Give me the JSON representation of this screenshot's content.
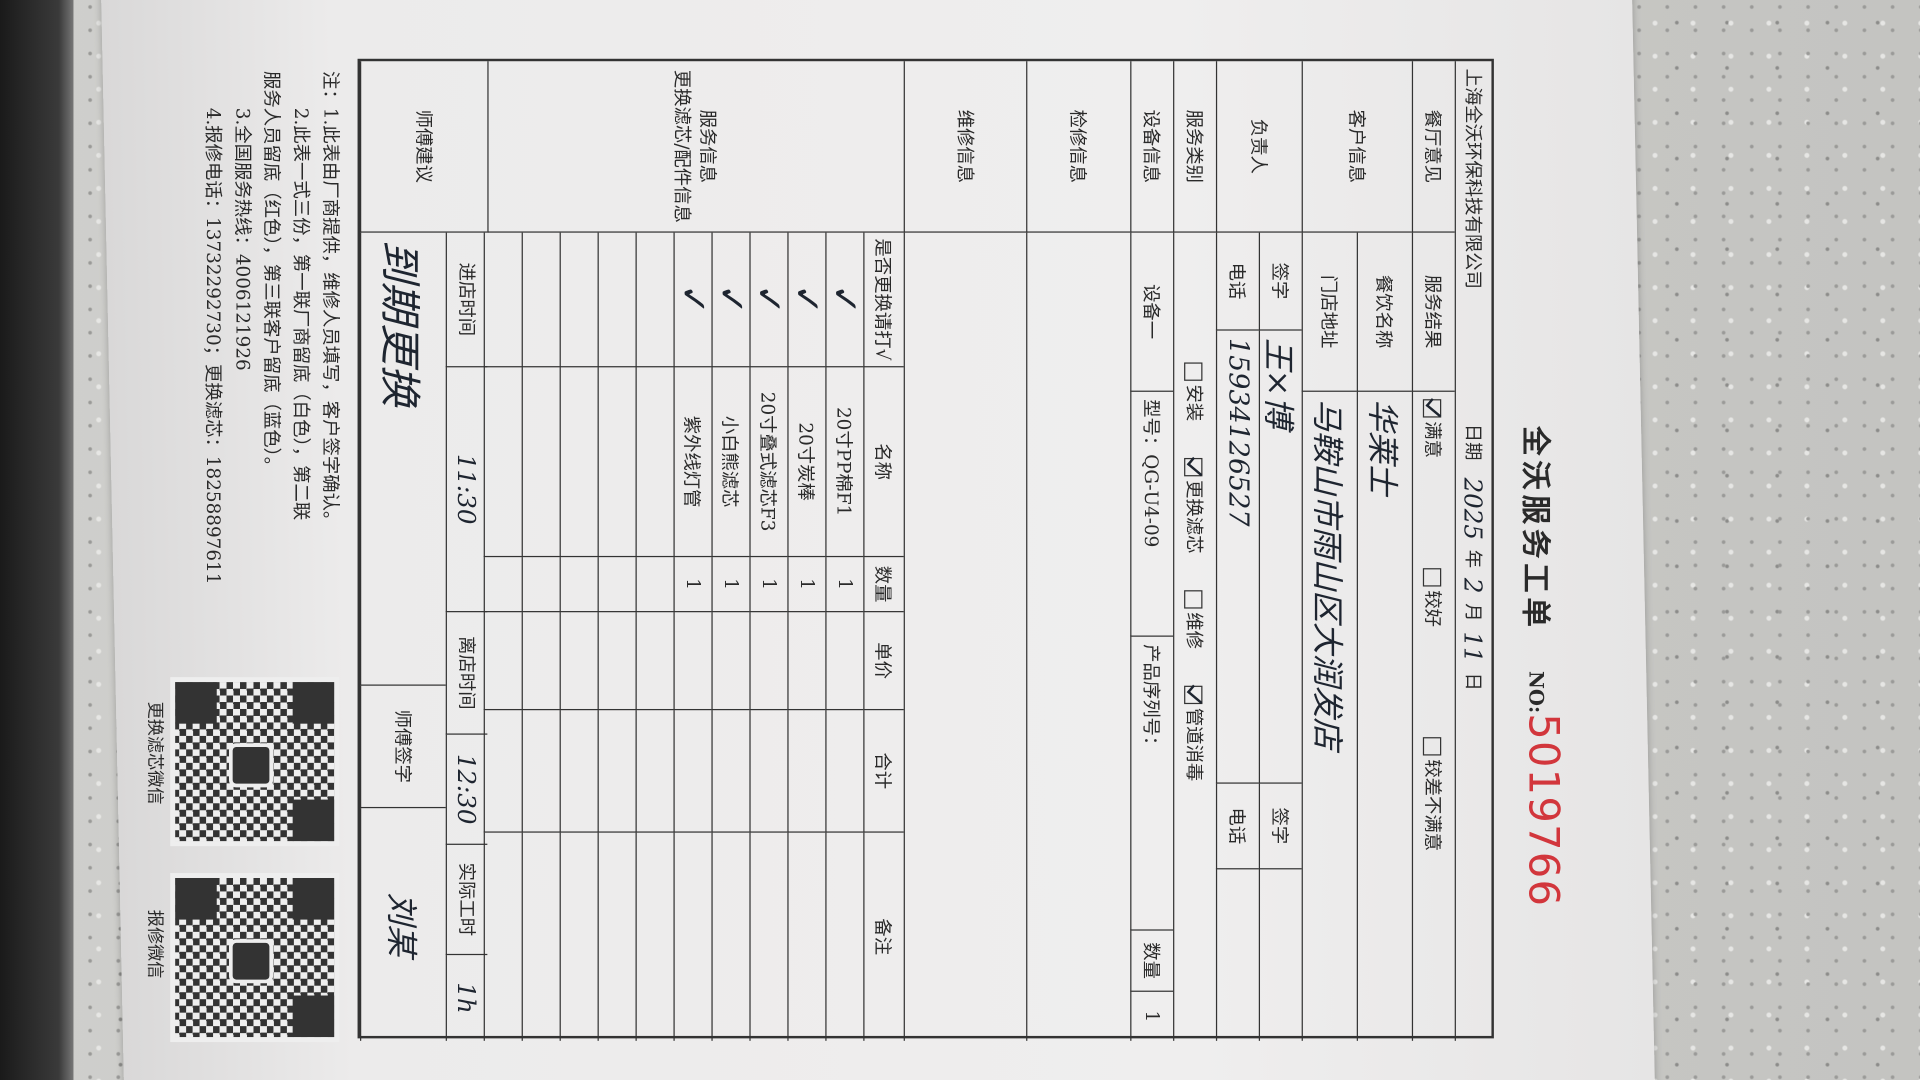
{
  "header": {
    "title": "全沃服务工单",
    "no_label": "NO:",
    "no_value": "5019766",
    "company": "上海全沃环保科技有限公司",
    "date_label": "日期",
    "date_year": "2025",
    "date_year_unit": "年",
    "date_month": "2",
    "date_month_unit": "月",
    "date_day": "11",
    "date_day_unit": "日"
  },
  "opinion": {
    "label": "餐厅意见",
    "result_label": "服务结果",
    "options": [
      {
        "label": "满意",
        "checked": true
      },
      {
        "label": "较好",
        "checked": false
      },
      {
        "label": "较差不满意",
        "checked": false
      }
    ]
  },
  "customer": {
    "label": "客户信息",
    "name_label": "餐饮名称",
    "name_value": "华莱士",
    "address_label": "门店地址",
    "address_value": "马鞍山市雨山区大润发店"
  },
  "person": {
    "label": "负责人",
    "sign_label": "签字",
    "sign_value": "王×博",
    "phone_label": "电话",
    "phone_value": "15934126527",
    "sign_label2": "签字",
    "phone_label2": "电话"
  },
  "service_type": {
    "label": "服务类别",
    "options": [
      {
        "label": "安装",
        "checked": false
      },
      {
        "label": "更换滤芯",
        "checked": true
      },
      {
        "label": "维修",
        "checked": false
      },
      {
        "label": "管道消毒",
        "checked": true
      }
    ]
  },
  "device": {
    "label": "设备信息",
    "device_label": "设备一",
    "model": "型号：QG-U4-09",
    "serial_label": "产品序列号：",
    "qty_label": "数量",
    "qty_value": "1"
  },
  "inspection": {
    "label": "检修信息"
  },
  "repair": {
    "label": "维修信息"
  },
  "parts": {
    "label1": "服务信息",
    "label2": "更换滤芯/配件信息",
    "columns": [
      "是否更换请打√",
      "名称",
      "数量",
      "单价",
      "合计",
      "备注"
    ],
    "rows": [
      {
        "check": "✓",
        "name": "20寸PP棉F1",
        "qty": "1"
      },
      {
        "check": "✓",
        "name": "20寸炭棒",
        "qty": "1"
      },
      {
        "check": "✓",
        "name": "20寸叠式滤芯F3",
        "qty": "1"
      },
      {
        "check": "✓",
        "name": "小白熊滤芯",
        "qty": "1"
      },
      {
        "check": "✓",
        "name": "紫外线灯管",
        "qty": "1"
      }
    ]
  },
  "time": {
    "in_label": "进店时间",
    "in_value": "11:30",
    "out_label": "离店时间",
    "out_value": "12:30",
    "hours_label": "实际工时",
    "hours_value": "1h"
  },
  "advice": {
    "label": "师傅建议",
    "value": "到期更换",
    "sign_label": "师傅签字",
    "sign_value": "刘某"
  },
  "notes": [
    "注：1.此表由厂商提供，维修人员填写，客户签字确认。",
    "2.此表一式三份，第一联厂商留底（白色），第二联",
    "服务人员留底（红色），第三联客户留底（蓝色）。",
    "3.全国服务热线：4006121926",
    "4.报修电话：13732292730；更换滤芯：18258897611"
  ],
  "qr": [
    {
      "caption": "更换滤芯微信"
    },
    {
      "caption": "报修微信"
    }
  ],
  "colors": {
    "no_number": "#d2363c",
    "ink": "#1e2530"
  }
}
